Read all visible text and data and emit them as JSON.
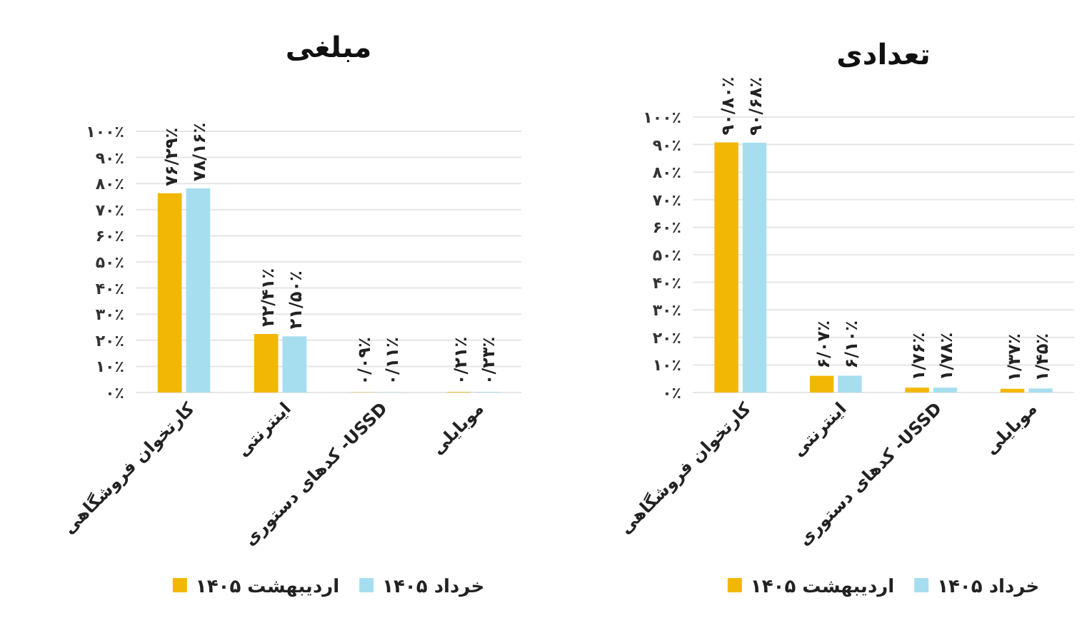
{
  "chart_data": [
    {
      "type": "bar",
      "title": "مبلغی",
      "categories": [
        "کارتخوان فروشگاهی",
        "اینترنتی",
        "کدهای دستوری -USSD",
        "موبایلی"
      ],
      "series": [
        {
          "name": "اردیبهشت ۱۴۰۵",
          "color": "#f2b705",
          "values": [
            76.29,
            22.41,
            0.09,
            0.21
          ],
          "value_labels": [
            "۷۶/۲۹٪",
            "۲۲/۴۱٪",
            "۰/۰۹٪",
            "۰/۲۱٪"
          ]
        },
        {
          "name": "خرداد ۱۴۰۵",
          "color": "#a6def0",
          "values": [
            78.16,
            21.5,
            0.11,
            0.23
          ],
          "value_labels": [
            "۷۸/۱۶٪",
            "۲۱/۵۰٪",
            "۰/۱۱٪",
            "۰/۲۳٪"
          ]
        }
      ],
      "ylim": [
        0,
        100
      ],
      "yticks": [
        {
          "value": 0,
          "label": "۰٪"
        },
        {
          "value": 10,
          "label": "۱۰٪"
        },
        {
          "value": 20,
          "label": "۲۰٪"
        },
        {
          "value": 30,
          "label": "۳۰٪"
        },
        {
          "value": 40,
          "label": "۴۰٪"
        },
        {
          "value": 50,
          "label": "۵۰٪"
        },
        {
          "value": 60,
          "label": "۶۰٪"
        },
        {
          "value": 70,
          "label": "۷۰٪"
        },
        {
          "value": 80,
          "label": "۸۰٪"
        },
        {
          "value": 90,
          "label": "۹۰٪"
        },
        {
          "value": 100,
          "label": "۱۰۰٪"
        }
      ],
      "grid": "y",
      "legend": "bottom"
    },
    {
      "type": "bar",
      "title": "تعدادی",
      "categories": [
        "کارتخوان فروشگاهی",
        "اینترنتی",
        "کدهای دستوری -USSD",
        "موبایلی"
      ],
      "series": [
        {
          "name": "اردیبهشت ۱۴۰۵",
          "color": "#f2b705",
          "values": [
            90.8,
            6.07,
            1.76,
            1.37
          ],
          "value_labels": [
            "۹۰/۸۰٪",
            "۶/۰۷٪",
            "۱/۷۶٪",
            "۱/۳۷٪"
          ]
        },
        {
          "name": "خرداد ۱۴۰۵",
          "color": "#a6def0",
          "values": [
            90.68,
            6.1,
            1.78,
            1.45
          ],
          "value_labels": [
            "۹۰/۶۸٪",
            "۶/۱۰٪",
            "۱/۷۸٪",
            "۱/۴۵٪"
          ]
        }
      ],
      "ylim": [
        0,
        100
      ],
      "yticks": [
        {
          "value": 0,
          "label": "۰٪"
        },
        {
          "value": 10,
          "label": "۱۰٪"
        },
        {
          "value": 20,
          "label": "۲۰٪"
        },
        {
          "value": 30,
          "label": "۳۰٪"
        },
        {
          "value": 40,
          "label": "۴۰٪"
        },
        {
          "value": 50,
          "label": "۵۰٪"
        },
        {
          "value": 60,
          "label": "۶۰٪"
        },
        {
          "value": 70,
          "label": "۷۰٪"
        },
        {
          "value": 80,
          "label": "۸۰٪"
        },
        {
          "value": 90,
          "label": "۹۰٪"
        },
        {
          "value": 100,
          "label": "۱۰۰٪"
        }
      ],
      "grid": "y",
      "legend": "bottom"
    }
  ]
}
